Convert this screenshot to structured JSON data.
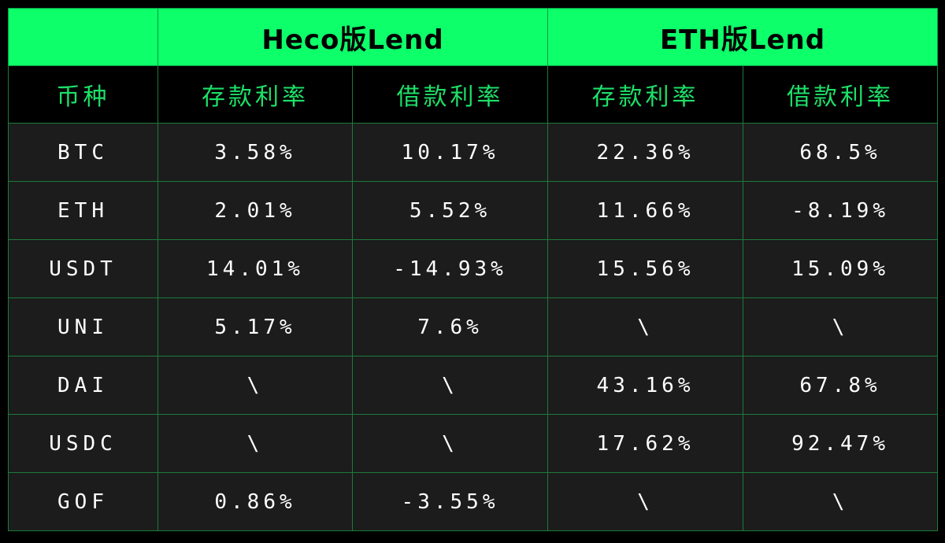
{
  "header": {
    "corner": "",
    "groups": [
      "Heco版Lend",
      "ETH版Lend"
    ]
  },
  "subheader": {
    "coin_label": "币种",
    "columns": [
      "存款利率",
      "借款利率",
      "存款利率",
      "借款利率"
    ]
  },
  "rows": [
    {
      "coin": "BTC",
      "cells": [
        "3.58%",
        "10.17%",
        "22.36%",
        "68.5%"
      ]
    },
    {
      "coin": "ETH",
      "cells": [
        "2.01%",
        "5.52%",
        "11.66%",
        "-8.19%"
      ]
    },
    {
      "coin": "USDT",
      "cells": [
        "14.01%",
        "-14.93%",
        "15.56%",
        "15.09%"
      ]
    },
    {
      "coin": "UNI",
      "cells": [
        "5.17%",
        "7.6%",
        "\\",
        "\\"
      ]
    },
    {
      "coin": "DAI",
      "cells": [
        "\\",
        "\\",
        "43.16%",
        "67.8%"
      ]
    },
    {
      "coin": "USDC",
      "cells": [
        "\\",
        "\\",
        "17.62%",
        "92.47%"
      ]
    },
    {
      "coin": "GOF",
      "cells": [
        "0.86%",
        "-3.55%",
        "\\",
        "\\"
      ]
    }
  ],
  "colors": {
    "header_bg": "#0dff6a",
    "subheader_text": "#1de068",
    "row_bg": "#1c1c1c",
    "border": "#1c7a3a",
    "page_bg": "#000000"
  }
}
